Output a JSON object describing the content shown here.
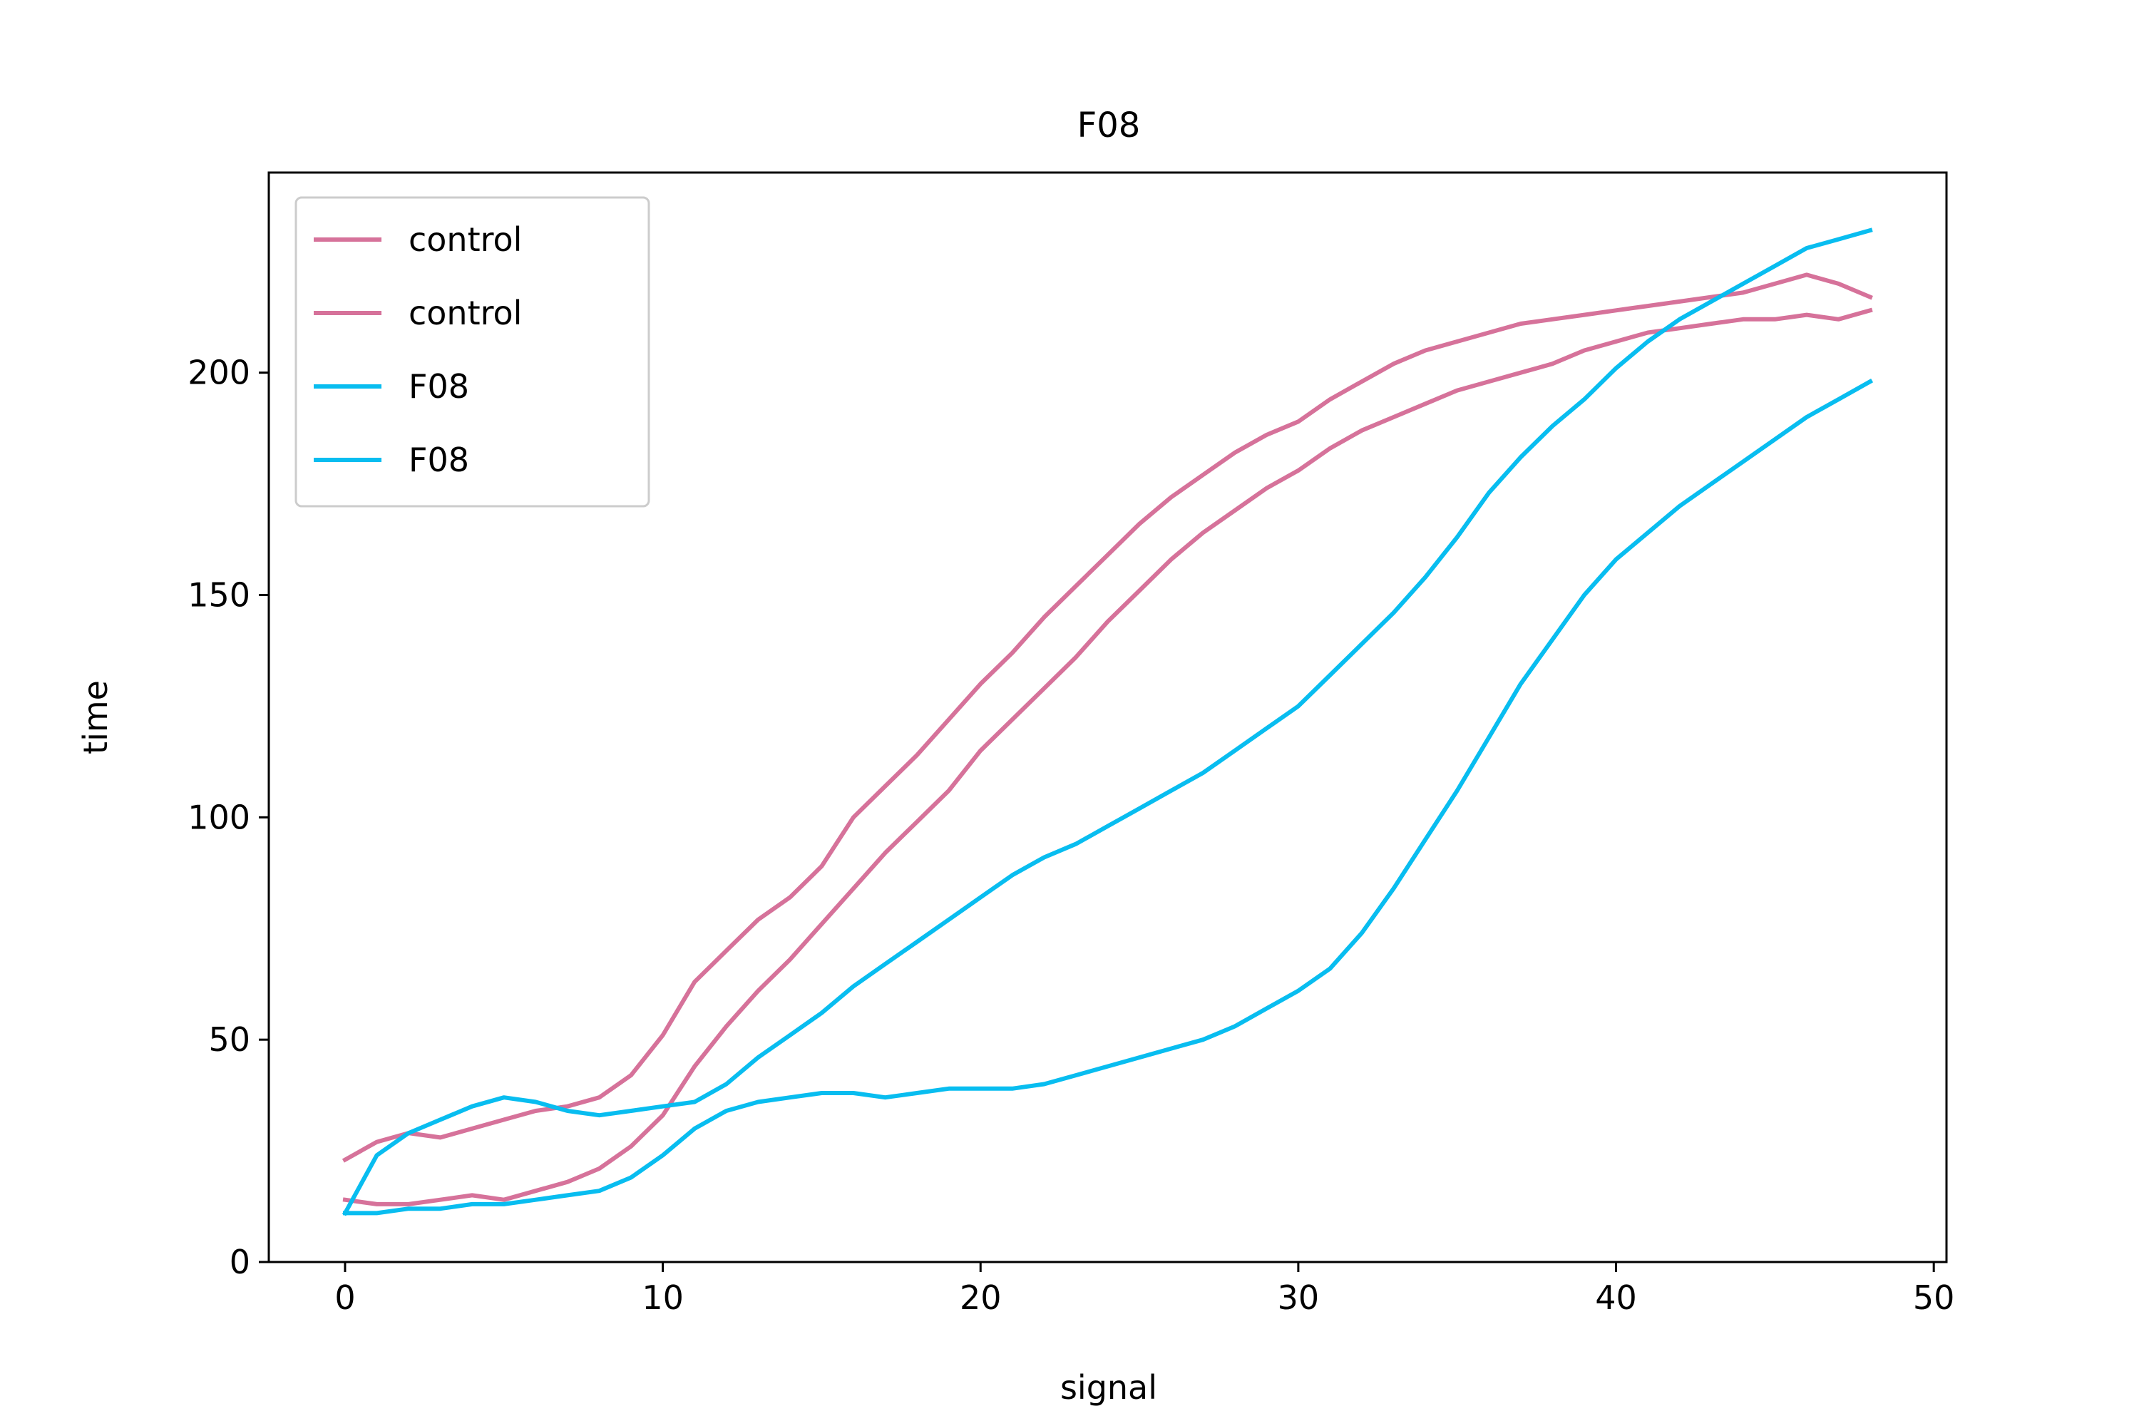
{
  "chart_data": {
    "type": "line",
    "title": "F08",
    "xlabel": "signal",
    "ylabel": "time",
    "xlim": [
      -2.4,
      50.4
    ],
    "ylim": [
      0,
      245
    ],
    "xticks": [
      "0",
      "10",
      "20",
      "30",
      "40",
      "50"
    ],
    "yticks": [
      "0",
      "50",
      "100",
      "150",
      "200"
    ],
    "grid": false,
    "legend_position": "upper-left",
    "colors": {
      "control": "#d6729a",
      "F08": "#08bdf0"
    },
    "series": [
      {
        "name": "control",
        "color": "#d6729a",
        "x": [
          0,
          1,
          2,
          3,
          4,
          5,
          6,
          7,
          8,
          9,
          10,
          11,
          12,
          13,
          14,
          15,
          16,
          17,
          18,
          19,
          20,
          21,
          22,
          23,
          24,
          25,
          26,
          27,
          28,
          29,
          30,
          31,
          32,
          33,
          34,
          35,
          36,
          37,
          38,
          39,
          40,
          41,
          42,
          43,
          44,
          45,
          46,
          47,
          48
        ],
        "y": [
          23,
          27,
          29,
          28,
          30,
          32,
          34,
          35,
          37,
          42,
          51,
          63,
          70,
          77,
          82,
          89,
          100,
          107,
          114,
          122,
          130,
          137,
          145,
          152,
          159,
          166,
          172,
          177,
          182,
          186,
          189,
          194,
          198,
          202,
          205,
          207,
          209,
          211,
          212,
          213,
          214,
          215,
          216,
          217,
          218,
          220,
          222,
          220,
          217
        ]
      },
      {
        "name": "control",
        "color": "#d6729a",
        "x": [
          0,
          1,
          2,
          3,
          4,
          5,
          6,
          7,
          8,
          9,
          10,
          11,
          12,
          13,
          14,
          15,
          16,
          17,
          18,
          19,
          20,
          21,
          22,
          23,
          24,
          25,
          26,
          27,
          28,
          29,
          30,
          31,
          32,
          33,
          34,
          35,
          36,
          37,
          38,
          39,
          40,
          41,
          42,
          43,
          44,
          45,
          46,
          47,
          48
        ],
        "y": [
          14,
          13,
          13,
          14,
          15,
          14,
          16,
          18,
          21,
          26,
          33,
          44,
          53,
          61,
          68,
          76,
          84,
          92,
          99,
          106,
          115,
          122,
          129,
          136,
          144,
          151,
          158,
          164,
          169,
          174,
          178,
          183,
          187,
          190,
          193,
          196,
          198,
          200,
          202,
          205,
          207,
          209,
          210,
          211,
          212,
          212,
          213,
          212,
          214
        ]
      },
      {
        "name": "F08",
        "color": "#08bdf0",
        "x": [
          0,
          1,
          2,
          3,
          4,
          5,
          6,
          7,
          8,
          9,
          10,
          11,
          12,
          13,
          14,
          15,
          16,
          17,
          18,
          19,
          20,
          21,
          22,
          23,
          24,
          25,
          26,
          27,
          28,
          29,
          30,
          31,
          32,
          33,
          34,
          35,
          36,
          37,
          38,
          39,
          40,
          41,
          42,
          43,
          44,
          45,
          46,
          47,
          48
        ],
        "y": [
          11,
          24,
          29,
          32,
          35,
          37,
          36,
          34,
          33,
          34,
          35,
          36,
          40,
          46,
          51,
          56,
          62,
          67,
          72,
          77,
          82,
          87,
          91,
          94,
          98,
          102,
          106,
          110,
          115,
          120,
          125,
          132,
          139,
          146,
          154,
          163,
          173,
          181,
          188,
          194,
          201,
          207,
          212,
          216,
          220,
          224,
          228,
          230,
          232
        ]
      },
      {
        "name": "F08",
        "color": "#08bdf0",
        "x": [
          0,
          1,
          2,
          3,
          4,
          5,
          6,
          7,
          8,
          9,
          10,
          11,
          12,
          13,
          14,
          15,
          16,
          17,
          18,
          19,
          20,
          21,
          22,
          23,
          24,
          25,
          26,
          27,
          28,
          29,
          30,
          31,
          32,
          33,
          34,
          35,
          36,
          37,
          38,
          39,
          40,
          41,
          42,
          43,
          44,
          45,
          46,
          47,
          48
        ],
        "y": [
          11,
          11,
          12,
          12,
          13,
          13,
          14,
          15,
          16,
          19,
          24,
          30,
          34,
          36,
          37,
          38,
          38,
          37,
          38,
          39,
          39,
          39,
          40,
          42,
          44,
          46,
          48,
          50,
          53,
          57,
          61,
          66,
          74,
          84,
          95,
          106,
          118,
          130,
          140,
          150,
          158,
          164,
          170,
          175,
          180,
          185,
          190,
          194,
          198
        ]
      }
    ]
  }
}
